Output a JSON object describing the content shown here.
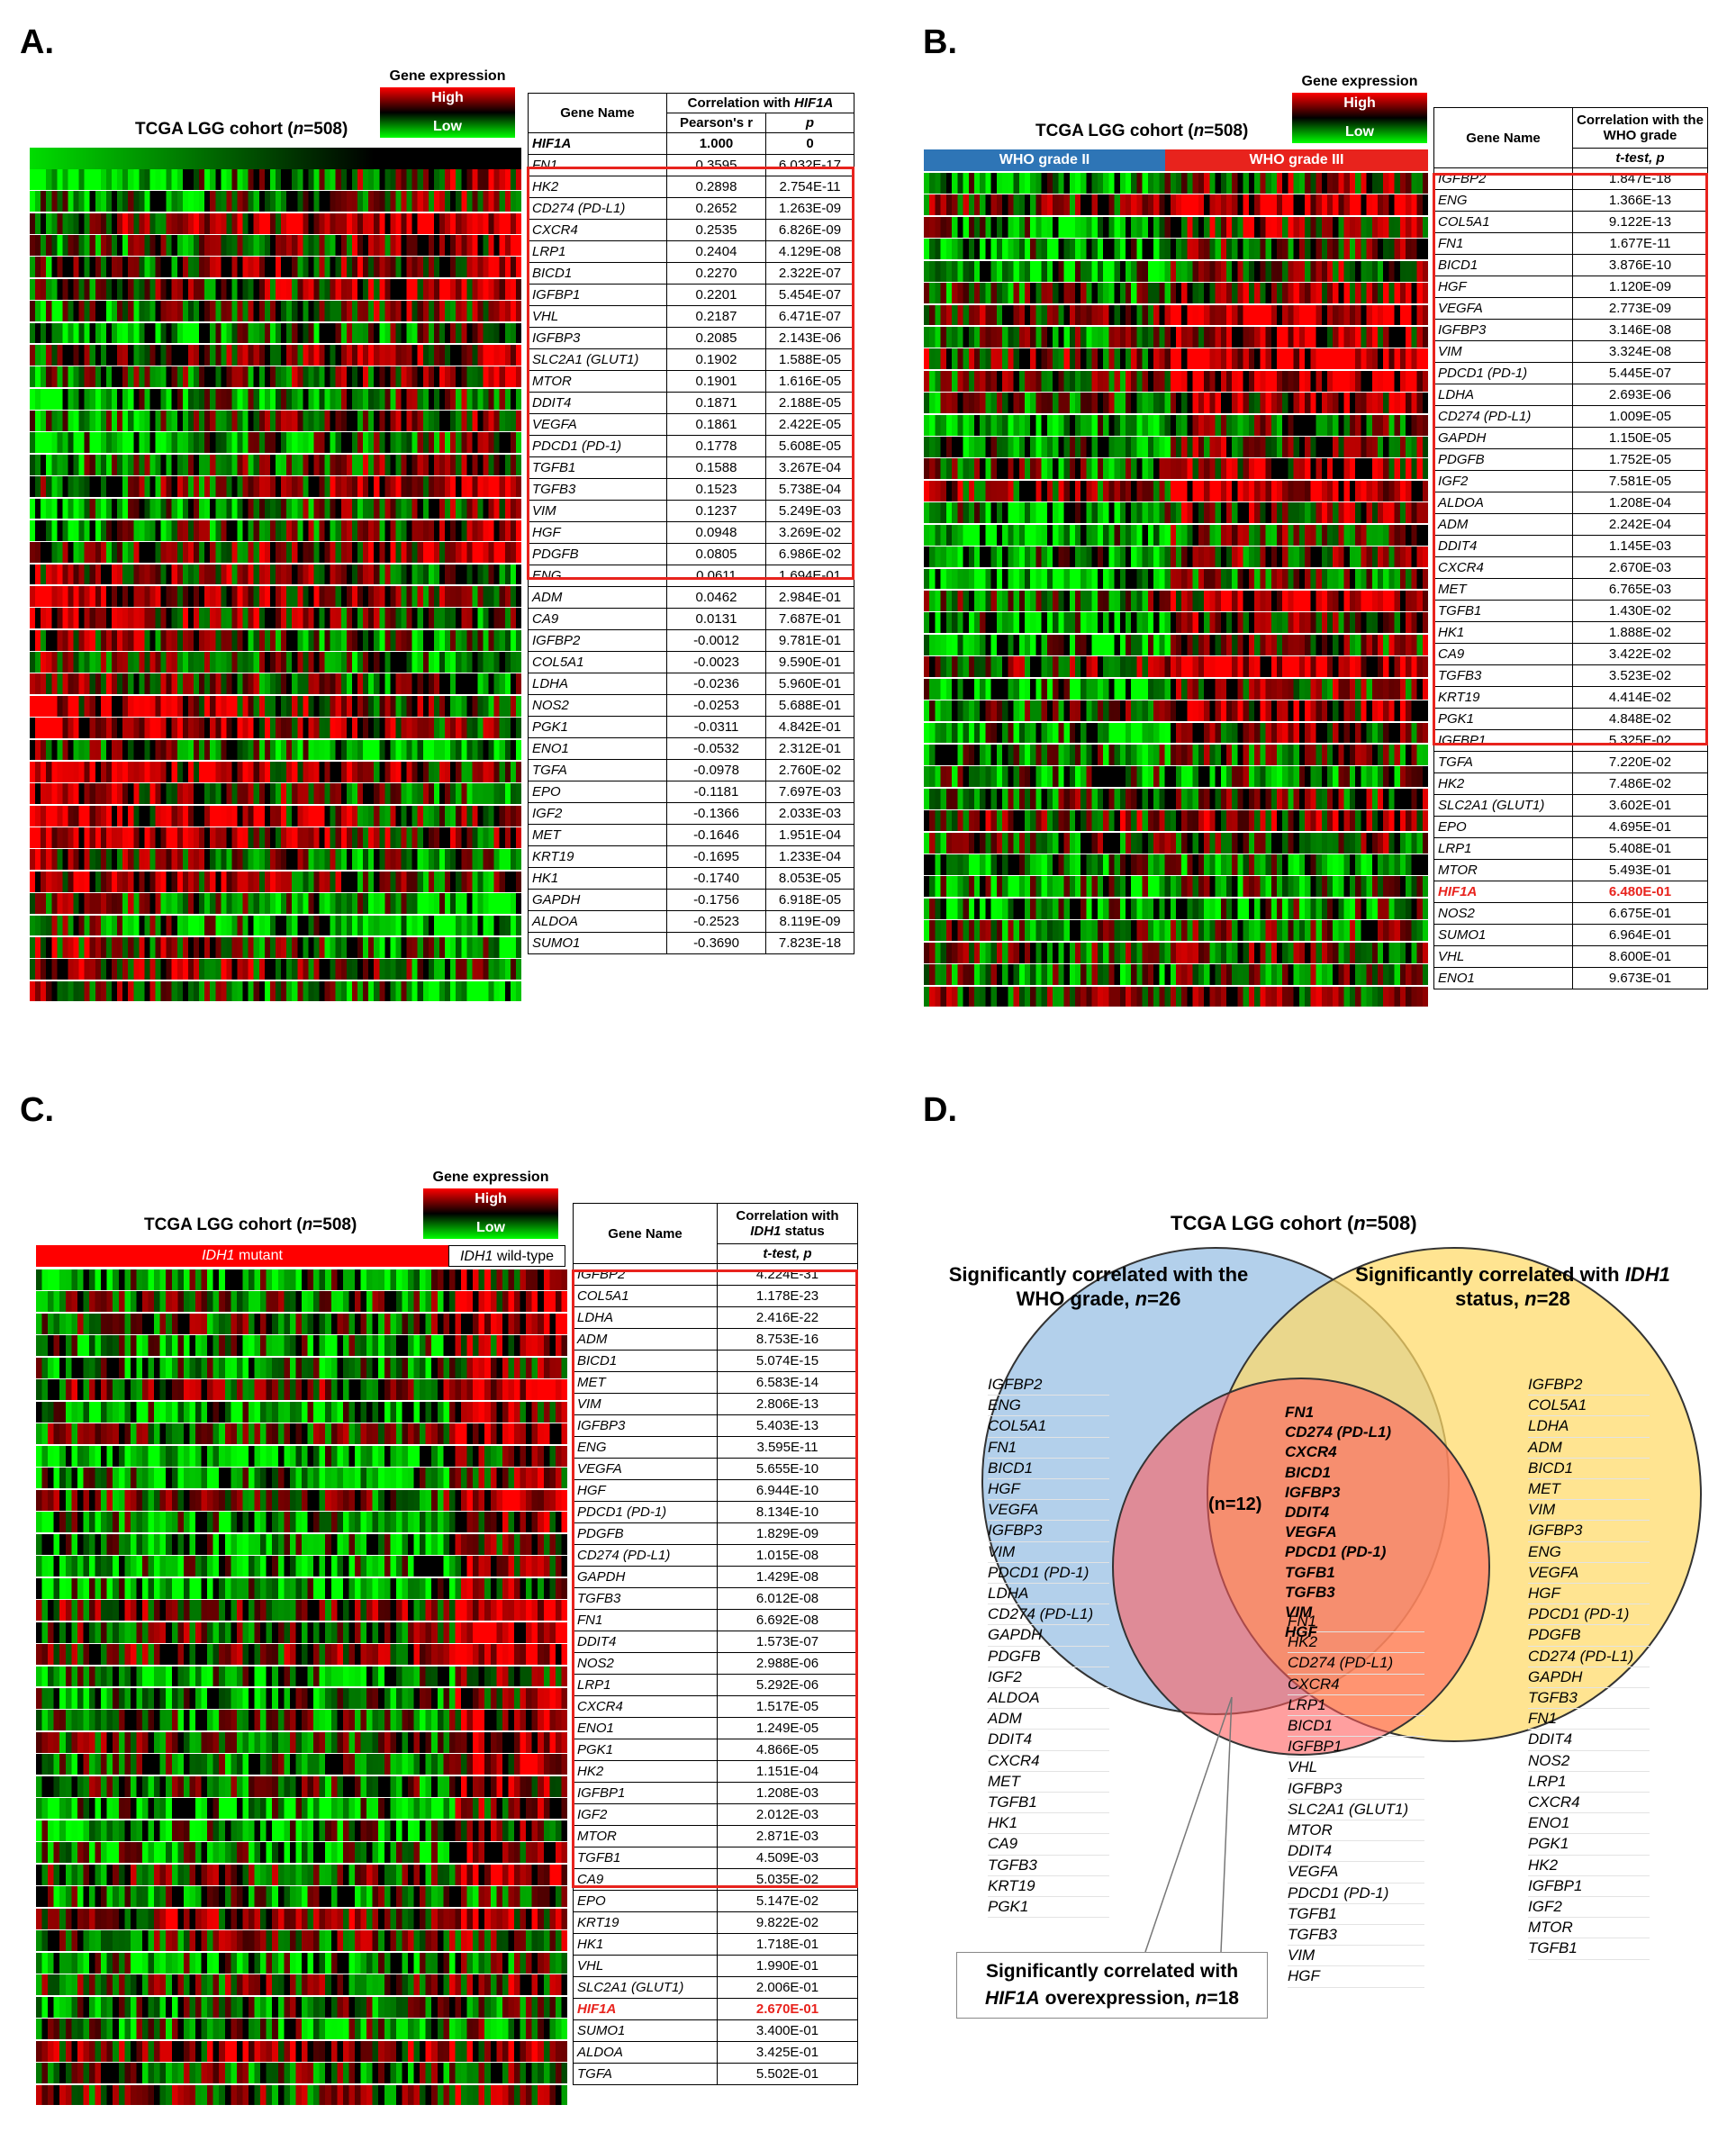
{
  "panels": {
    "A": {
      "label": "A.",
      "cohort": "TCGA LGG cohort (n=508)",
      "legend": {
        "title": "Gene expression",
        "high": "High",
        "low": "Low"
      },
      "table": {
        "col_gene": "Gene Name",
        "col_corr": "Correlation with HIF1A",
        "col_r": "Pearson's r",
        "col_p": "p",
        "rows": [
          [
            "HIF1A",
            "1.000",
            "0"
          ],
          [
            "FN1",
            "0.3595",
            "6.032E-17"
          ],
          [
            "HK2",
            "0.2898",
            "2.754E-11"
          ],
          [
            "CD274 (PD-L1)",
            "0.2652",
            "1.263E-09"
          ],
          [
            "CXCR4",
            "0.2535",
            "6.826E-09"
          ],
          [
            "LRP1",
            "0.2404",
            "4.129E-08"
          ],
          [
            "BICD1",
            "0.2270",
            "2.322E-07"
          ],
          [
            "IGFBP1",
            "0.2201",
            "5.454E-07"
          ],
          [
            "VHL",
            "0.2187",
            "6.471E-07"
          ],
          [
            "IGFBP3",
            "0.2085",
            "2.143E-06"
          ],
          [
            "SLC2A1 (GLUT1)",
            "0.1902",
            "1.588E-05"
          ],
          [
            "MTOR",
            "0.1901",
            "1.616E-05"
          ],
          [
            "DDIT4",
            "0.1871",
            "2.188E-05"
          ],
          [
            "VEGFA",
            "0.1861",
            "2.422E-05"
          ],
          [
            "PDCD1 (PD-1)",
            "0.1778",
            "5.608E-05"
          ],
          [
            "TGFB1",
            "0.1588",
            "3.267E-04"
          ],
          [
            "TGFB3",
            "0.1523",
            "5.738E-04"
          ],
          [
            "VIM",
            "0.1237",
            "5.249E-03"
          ],
          [
            "HGF",
            "0.0948",
            "3.269E-02"
          ],
          [
            "PDGFB",
            "0.0805",
            "6.986E-02"
          ],
          [
            "ENG",
            "0.0611",
            "1.694E-01"
          ],
          [
            "ADM",
            "0.0462",
            "2.984E-01"
          ],
          [
            "CA9",
            "0.0131",
            "7.687E-01"
          ],
          [
            "IGFBP2",
            "-0.0012",
            "9.781E-01"
          ],
          [
            "COL5A1",
            "-0.0023",
            "9.590E-01"
          ],
          [
            "LDHA",
            "-0.0236",
            "5.960E-01"
          ],
          [
            "NOS2",
            "-0.0253",
            "5.688E-01"
          ],
          [
            "PGK1",
            "-0.0311",
            "4.842E-01"
          ],
          [
            "ENO1",
            "-0.0532",
            "2.312E-01"
          ],
          [
            "TGFA",
            "-0.0978",
            "2.760E-02"
          ],
          [
            "EPO",
            "-0.1181",
            "7.697E-03"
          ],
          [
            "IGF2",
            "-0.1366",
            "2.033E-03"
          ],
          [
            "MET",
            "-0.1646",
            "1.951E-04"
          ],
          [
            "KRT19",
            "-0.1695",
            "1.233E-04"
          ],
          [
            "HK1",
            "-0.1740",
            "8.053E-05"
          ],
          [
            "GAPDH",
            "-0.1756",
            "6.918E-05"
          ],
          [
            "ALDOA",
            "-0.2523",
            "8.119E-09"
          ],
          [
            "SUMO1",
            "-0.3690",
            "7.823E-18"
          ]
        ]
      }
    },
    "B": {
      "label": "B.",
      "cohort": "TCGA LGG cohort (n=508)",
      "legend": {
        "title": "Gene expression",
        "high": "High",
        "low": "Low"
      },
      "group_labels": [
        "WHO grade II",
        "WHO grade  III"
      ],
      "table": {
        "col_gene": "Gene Name",
        "col_corr": "Correlation with the WHO grade",
        "col_p": "t-test, p",
        "rows": [
          [
            "IGFBP2",
            "1.847E-18"
          ],
          [
            "ENG",
            "1.366E-13"
          ],
          [
            "COL5A1",
            "9.122E-13"
          ],
          [
            "FN1",
            "1.677E-11"
          ],
          [
            "BICD1",
            "3.876E-10"
          ],
          [
            "HGF",
            "1.120E-09"
          ],
          [
            "VEGFA",
            "2.773E-09"
          ],
          [
            "IGFBP3",
            "3.146E-08"
          ],
          [
            "VIM",
            "3.324E-08"
          ],
          [
            "PDCD1 (PD-1)",
            "5.445E-07"
          ],
          [
            "LDHA",
            "2.693E-06"
          ],
          [
            "CD274 (PD-L1)",
            "1.009E-05"
          ],
          [
            "GAPDH",
            "1.150E-05"
          ],
          [
            "PDGFB",
            "1.752E-05"
          ],
          [
            "IGF2",
            "7.581E-05"
          ],
          [
            "ALDOA",
            "1.208E-04"
          ],
          [
            "ADM",
            "2.242E-04"
          ],
          [
            "DDIT4",
            "1.145E-03"
          ],
          [
            "CXCR4",
            "2.670E-03"
          ],
          [
            "MET",
            "6.765E-03"
          ],
          [
            "TGFB1",
            "1.430E-02"
          ],
          [
            "HK1",
            "1.888E-02"
          ],
          [
            "CA9",
            "3.422E-02"
          ],
          [
            "TGFB3",
            "3.523E-02"
          ],
          [
            "KRT19",
            "4.414E-02"
          ],
          [
            "PGK1",
            "4.848E-02"
          ],
          [
            "IGFBP1",
            "5.325E-02"
          ],
          [
            "TGFA",
            "7.220E-02"
          ],
          [
            "HK2",
            "7.486E-02"
          ],
          [
            "SLC2A1 (GLUT1)",
            "3.602E-01"
          ],
          [
            "EPO",
            "4.695E-01"
          ],
          [
            "LRP1",
            "5.408E-01"
          ],
          [
            "MTOR",
            "5.493E-01"
          ],
          [
            "HIF1A",
            "6.480E-01"
          ],
          [
            "NOS2",
            "6.675E-01"
          ],
          [
            "SUMO1",
            "6.964E-01"
          ],
          [
            "VHL",
            "8.600E-01"
          ],
          [
            "ENO1",
            "9.673E-01"
          ]
        ]
      }
    },
    "C": {
      "label": "C.",
      "cohort": "TCGA LGG cohort (n=508)",
      "legend": {
        "title": "Gene expression",
        "high": "High",
        "low": "Low"
      },
      "group_labels": [
        "IDH1 mutant",
        "IDH1 wild-type"
      ],
      "table": {
        "col_gene": "Gene Name",
        "col_corr": "Correlation with IDH1 status",
        "col_p": "t-test, p",
        "rows": [
          [
            "IGFBP2",
            "4.224E-31"
          ],
          [
            "COL5A1",
            "1.178E-23"
          ],
          [
            "LDHA",
            "2.416E-22"
          ],
          [
            "ADM",
            "8.753E-16"
          ],
          [
            "BICD1",
            "5.074E-15"
          ],
          [
            "MET",
            "6.583E-14"
          ],
          [
            "VIM",
            "2.806E-13"
          ],
          [
            "IGFBP3",
            "5.403E-13"
          ],
          [
            "ENG",
            "3.595E-11"
          ],
          [
            "VEGFA",
            "5.655E-10"
          ],
          [
            "HGF",
            "6.944E-10"
          ],
          [
            "PDCD1 (PD-1)",
            "8.134E-10"
          ],
          [
            "PDGFB",
            "1.829E-09"
          ],
          [
            "CD274 (PD-L1)",
            "1.015E-08"
          ],
          [
            "GAPDH",
            "1.429E-08"
          ],
          [
            "TGFB3",
            "6.012E-08"
          ],
          [
            "FN1",
            "6.692E-08"
          ],
          [
            "DDIT4",
            "1.573E-07"
          ],
          [
            "NOS2",
            "2.988E-06"
          ],
          [
            "LRP1",
            "5.292E-06"
          ],
          [
            "CXCR4",
            "1.517E-05"
          ],
          [
            "ENO1",
            "1.249E-05"
          ],
          [
            "PGK1",
            "4.866E-05"
          ],
          [
            "HK2",
            "1.151E-04"
          ],
          [
            "IGFBP1",
            "1.208E-03"
          ],
          [
            "IGF2",
            "2.012E-03"
          ],
          [
            "MTOR",
            "2.871E-03"
          ],
          [
            "TGFB1",
            "4.509E-03"
          ],
          [
            "CA9",
            "5.035E-02"
          ],
          [
            "EPO",
            "5.147E-02"
          ],
          [
            "KRT19",
            "9.822E-02"
          ],
          [
            "HK1",
            "1.718E-01"
          ],
          [
            "VHL",
            "1.990E-01"
          ],
          [
            "SLC2A1 (GLUT1)",
            "2.006E-01"
          ],
          [
            "HIF1A",
            "2.670E-01"
          ],
          [
            "SUMO1",
            "3.400E-01"
          ],
          [
            "ALDOA",
            "3.425E-01"
          ],
          [
            "TGFA",
            "5.502E-01"
          ]
        ]
      }
    },
    "D": {
      "label": "D.",
      "cohort": "TCGA LGG cohort (n=508)",
      "who_title": "Significantly correlated with the WHO grade, n=26",
      "idh_title": "Significantly correlated with IDH1 status, n=28",
      "hif_title": "Significantly correlated with HIF1A overexpression, n=18",
      "center_count": "(n=12)",
      "who_genes": [
        "IGFBP2",
        "ENG",
        "COL5A1",
        "FN1",
        "BICD1",
        "HGF",
        "VEGFA",
        "IGFBP3",
        "VIM",
        "PDCD1 (PD-1)",
        "LDHA",
        "CD274 (PD-L1)",
        "GAPDH",
        "PDGFB",
        "IGF2",
        "ALDOA",
        "ADM",
        "DDIT4",
        "CXCR4",
        "MET",
        "TGFB1",
        "HK1",
        "CA9",
        "TGFB3",
        "KRT19",
        "PGK1"
      ],
      "idh_genes": [
        "IGFBP2",
        "COL5A1",
        "LDHA",
        "ADM",
        "BICD1",
        "MET",
        "VIM",
        "IGFBP3",
        "ENG",
        "VEGFA",
        "HGF",
        "PDCD1 (PD-1)",
        "PDGFB",
        "CD274 (PD-L1)",
        "GAPDH",
        "TGFB3",
        "FN1",
        "DDIT4",
        "NOS2",
        "LRP1",
        "CXCR4",
        "ENO1",
        "PGK1",
        "HK2",
        "IGFBP1",
        "IGF2",
        "MTOR",
        "TGFB1"
      ],
      "hif_genes": [
        "FN1",
        "HK2",
        "CD274 (PD-L1)",
        "CXCR4",
        "LRP1",
        "BICD1",
        "IGFBP1",
        "VHL",
        "IGFBP3",
        "SLC2A1 (GLUT1)",
        "MTOR",
        "DDIT4",
        "VEGFA",
        "PDCD1 (PD-1)",
        "TGFB1",
        "TGFB3",
        "VIM",
        "HGF"
      ],
      "center_genes": [
        "FN1",
        "CD274 (PD-L1)",
        "CXCR4",
        "BICD1",
        "IGFBP3",
        "DDIT4",
        "VEGFA",
        "PDCD1 (PD-1)",
        "TGFB1",
        "TGFB3",
        "VIM",
        "HGF"
      ]
    }
  },
  "colors": {
    "high": "#ff0000",
    "low": "#00ff00",
    "highlight_box": "#e8231d",
    "who_grade2": "#2e75b6",
    "who_grade3": "#e8231d",
    "idh_mutant": "#ff0000",
    "venn_blue": "#9dc3e6",
    "venn_yellow": "#ffd966",
    "venn_red": "#ff6b6b"
  }
}
